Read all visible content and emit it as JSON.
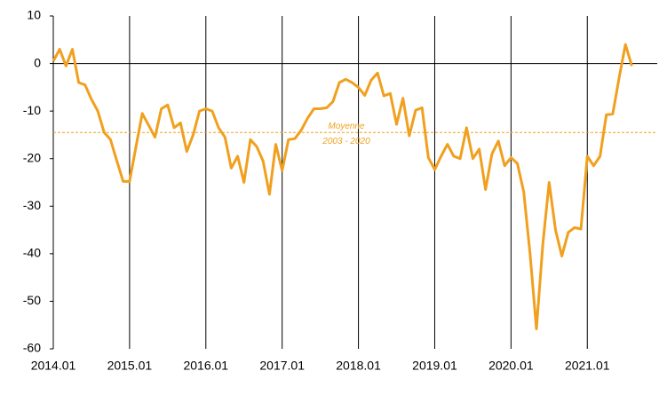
{
  "chart_data": {
    "type": "line",
    "x": [
      0,
      1,
      2,
      3,
      4,
      5,
      6,
      7,
      8,
      9,
      10,
      11,
      12,
      13,
      14,
      15,
      16,
      17,
      18,
      19,
      20,
      21,
      22,
      23,
      24,
      25,
      26,
      27,
      28,
      29,
      30,
      31,
      32,
      33,
      34,
      35,
      36,
      37,
      38,
      39,
      40,
      41,
      42,
      43,
      44,
      45,
      46,
      47,
      48,
      49,
      50,
      51,
      52,
      53,
      54,
      55,
      56,
      57,
      58,
      59,
      60,
      61,
      62,
      63,
      64,
      65,
      66,
      67,
      68,
      69,
      70,
      71,
      72,
      73,
      74,
      75,
      76,
      77,
      78,
      79,
      80,
      81,
      82,
      83,
      84,
      85,
      86,
      87,
      88,
      89,
      90,
      91
    ],
    "series": [
      {
        "color": "#f0a01e",
        "values": [
          0.5,
          3,
          -0.5,
          3,
          -4,
          -4.5,
          -7.5,
          -10,
          -14.5,
          -16,
          -20.5,
          -24.8,
          -24.8,
          -17.5,
          -10.5,
          -13,
          -15.5,
          -9.5,
          -8.7,
          -13.5,
          -12.5,
          -18.5,
          -15,
          -10,
          -9.5,
          -10,
          -13.5,
          -15.5,
          -22,
          -19.5,
          -25,
          -16,
          -17.5,
          -20.5,
          -27.5,
          -17,
          -22.5,
          -16,
          -15.8,
          -14,
          -11.5,
          -9.5,
          -9.5,
          -9.3,
          -8,
          -4,
          -3.3,
          -4,
          -5,
          -6.7,
          -3.5,
          -2,
          -6.8,
          -6.3,
          -12.8,
          -7.3,
          -15.2,
          -9.8,
          -9.3,
          -19.8,
          -22.3,
          -19.5,
          -17,
          -19.5,
          -20,
          -13.5,
          -20,
          -18,
          -26.5,
          -19,
          -16.3,
          -21.5,
          -19.8,
          -21,
          -27,
          -40,
          -55.8,
          -38,
          -25,
          -35,
          -40.5,
          -35.5,
          -34.5,
          -34.8,
          -19.5,
          -21.5,
          -19.5,
          -10.8,
          -10.6,
          -3,
          4,
          -0.5
        ]
      }
    ],
    "xlim": [
      0,
      95
    ],
    "xticks": [
      {
        "value": 0,
        "label": "2014.01"
      },
      {
        "value": 12,
        "label": "2015.01"
      },
      {
        "value": 24,
        "label": "2016.01"
      },
      {
        "value": 36,
        "label": "2017.01"
      },
      {
        "value": 48,
        "label": "2018.01"
      },
      {
        "value": 60,
        "label": "2019.01"
      },
      {
        "value": 72,
        "label": "2020.01"
      },
      {
        "value": 84,
        "label": "2021.01"
      }
    ],
    "ylim": [
      -60,
      10
    ],
    "yticks": [
      10,
      0,
      -10,
      -20,
      -30,
      -40,
      -50,
      -60
    ],
    "reference_line": {
      "value": -14.5,
      "color": "#f0a01e",
      "label": [
        "Moyenne",
        "2003 - 2020"
      ]
    }
  }
}
